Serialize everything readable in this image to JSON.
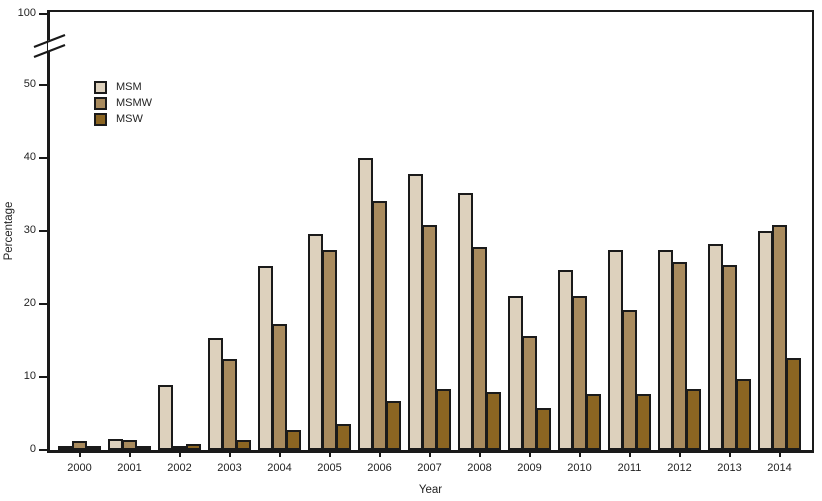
{
  "chart_data": {
    "type": "bar",
    "title": "",
    "xlabel": "Year",
    "ylabel": "Percentage",
    "categories": [
      "2000",
      "2001",
      "2002",
      "2003",
      "2004",
      "2005",
      "2006",
      "2007",
      "2008",
      "2009",
      "2010",
      "2011",
      "2012",
      "2013",
      "2014"
    ],
    "series": [
      {
        "name": "MSM",
        "color": "#ddd1bd",
        "values": [
          0.2,
          1.5,
          8.9,
          15.3,
          25.2,
          29.6,
          40.0,
          37.7,
          35.2,
          21.0,
          24.6,
          27.4,
          27.4,
          28.2,
          29.9
        ]
      },
      {
        "name": "MSMW",
        "color": "#a98b5e",
        "values": [
          1.2,
          1.4,
          0.6,
          12.4,
          17.3,
          27.4,
          34.1,
          30.8,
          27.8,
          15.6,
          21.1,
          19.2,
          25.7,
          25.3,
          30.8
        ]
      },
      {
        "name": "MSW",
        "color": "#8b6522",
        "values": [
          0.3,
          0.4,
          0.8,
          1.4,
          2.8,
          3.6,
          6.7,
          8.4,
          8.0,
          5.7,
          7.6,
          7.7,
          8.4,
          9.7,
          12.6
        ]
      }
    ],
    "yticks": [
      0,
      10,
      20,
      30,
      40,
      50,
      100
    ],
    "ylim": [
      0,
      100
    ],
    "axis_break": {
      "between": [
        50,
        100
      ]
    },
    "grid": false,
    "legend_position": "inside-upper-left",
    "axis_color": "#1a1a1a",
    "text_color": "#232323"
  }
}
